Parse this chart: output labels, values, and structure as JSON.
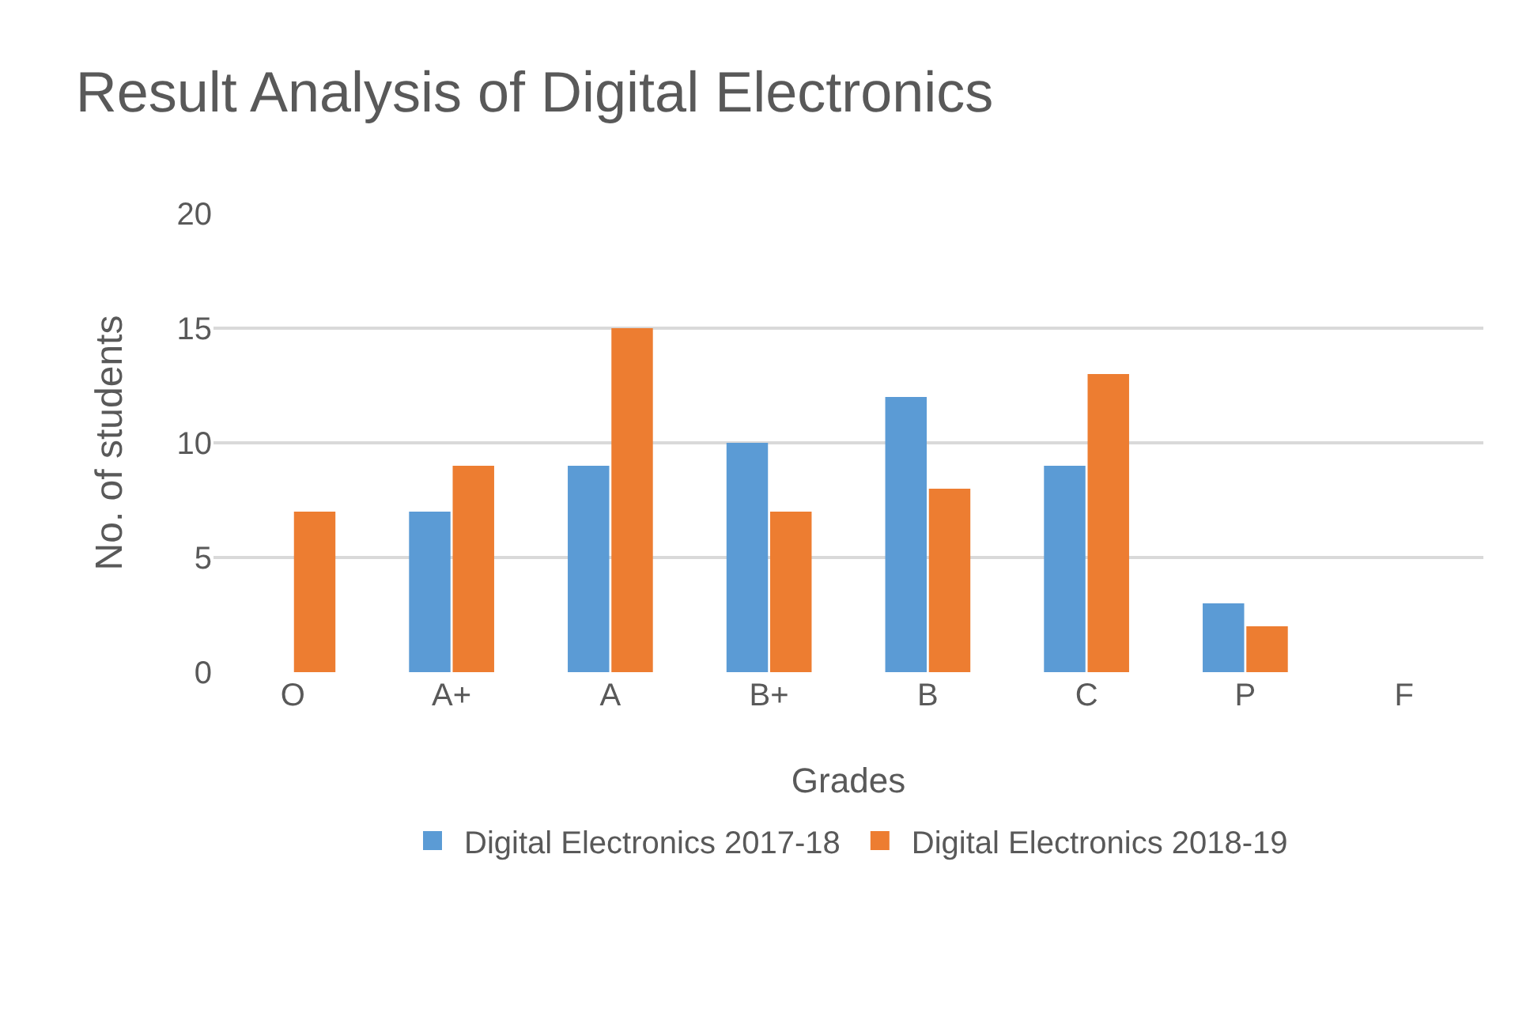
{
  "chart_data": {
    "type": "bar",
    "title": "Result Analysis of Digital Electronics",
    "xlabel": "Grades",
    "ylabel": "No. of students",
    "categories": [
      "O",
      "A+",
      "A",
      "B+",
      "B",
      "C",
      "P",
      "F"
    ],
    "series": [
      {
        "name": "Digital Electronics 2017-18",
        "color": "#5b9bd5",
        "values": [
          0,
          7,
          9,
          10,
          12,
          9,
          3,
          0
        ]
      },
      {
        "name": "Digital Electronics 2018-19",
        "color": "#ed7d31",
        "values": [
          7,
          9,
          15,
          7,
          8,
          13,
          2,
          0
        ]
      }
    ],
    "ylim": [
      0,
      20
    ],
    "yticks": [
      0,
      5,
      10,
      15,
      20
    ],
    "grid": "y",
    "legend": "bottom"
  }
}
